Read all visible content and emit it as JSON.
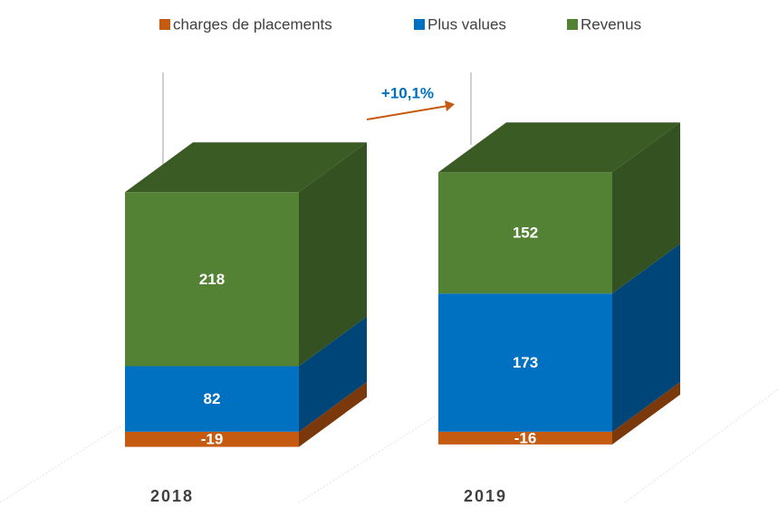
{
  "chart_data": {
    "type": "bar3d_stacked",
    "categories": [
      "2018",
      "2019"
    ],
    "series": [
      {
        "name": "charges de placements",
        "color": "#c55a11",
        "values": [
          -19,
          -16
        ]
      },
      {
        "name": "Plus values",
        "color": "#0070c0",
        "values": [
          82,
          173
        ]
      },
      {
        "name": "Revenus",
        "color": "#548235",
        "values": [
          218,
          152
        ]
      }
    ],
    "ylim": [
      -100,
      450
    ],
    "annotation": "+10,1%",
    "legend": "top"
  }
}
